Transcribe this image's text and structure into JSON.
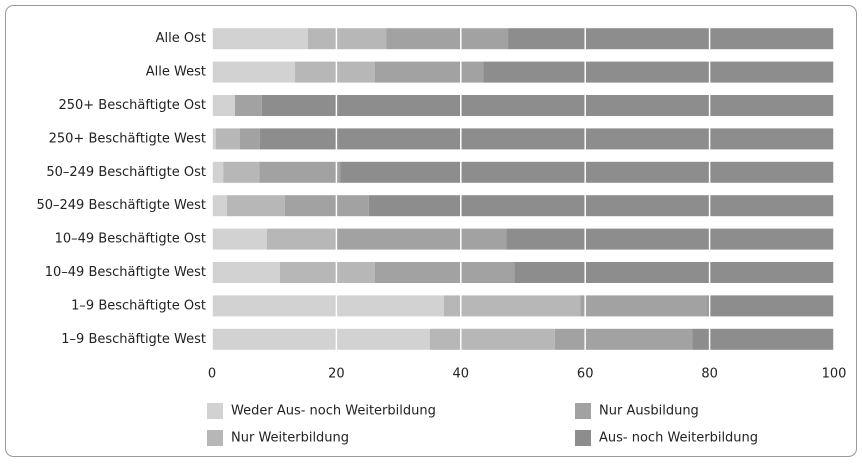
{
  "chart_data": {
    "type": "stacked-barh",
    "categories": [
      "Alle Ost",
      "Alle West",
      "250+ Beschäftigte Ost",
      "250+ Beschäftigte West",
      "50–249 Beschäftigte Ost",
      "50–249 Beschäftigte West",
      "10–49 Beschäftigte Ost",
      "10–49 Beschäftigte West",
      "1–9 Beschäftigte Ost",
      "1–9 Beschäftigte West"
    ],
    "series": [
      {
        "name": "Weder Aus- noch Weiterbildung",
        "color": "#d2d2d2",
        "values": [
          15.4,
          13.3,
          3.7,
          0.6,
          1.8,
          2.4,
          8.8,
          10.9,
          37.3,
          35.0
        ]
      },
      {
        "name": "Nur Weiterbildung",
        "color": "#b7b7b7",
        "values": [
          12.6,
          12.9,
          0,
          3.9,
          5.8,
          9.3,
          11.0,
          15.3,
          21.9,
          20.1
        ]
      },
      {
        "name": "Nur Ausbildung",
        "color": "#a2a2a2",
        "values": [
          19.6,
          17.4,
          4.3,
          3.2,
          13.0,
          13.5,
          27.5,
          22.4,
          20.4,
          22.1
        ]
      },
      {
        "name": "Aus- noch Weiterbildung",
        "color": "#8d8d8d",
        "values": [
          52.4,
          56.4,
          92.0,
          92.3,
          79.4,
          74.8,
          52.7,
          51.4,
          20.4,
          22.8
        ]
      }
    ],
    "xlim": [
      0,
      100
    ],
    "xticks": [
      0,
      20,
      40,
      60,
      80,
      100
    ],
    "grid": true
  }
}
